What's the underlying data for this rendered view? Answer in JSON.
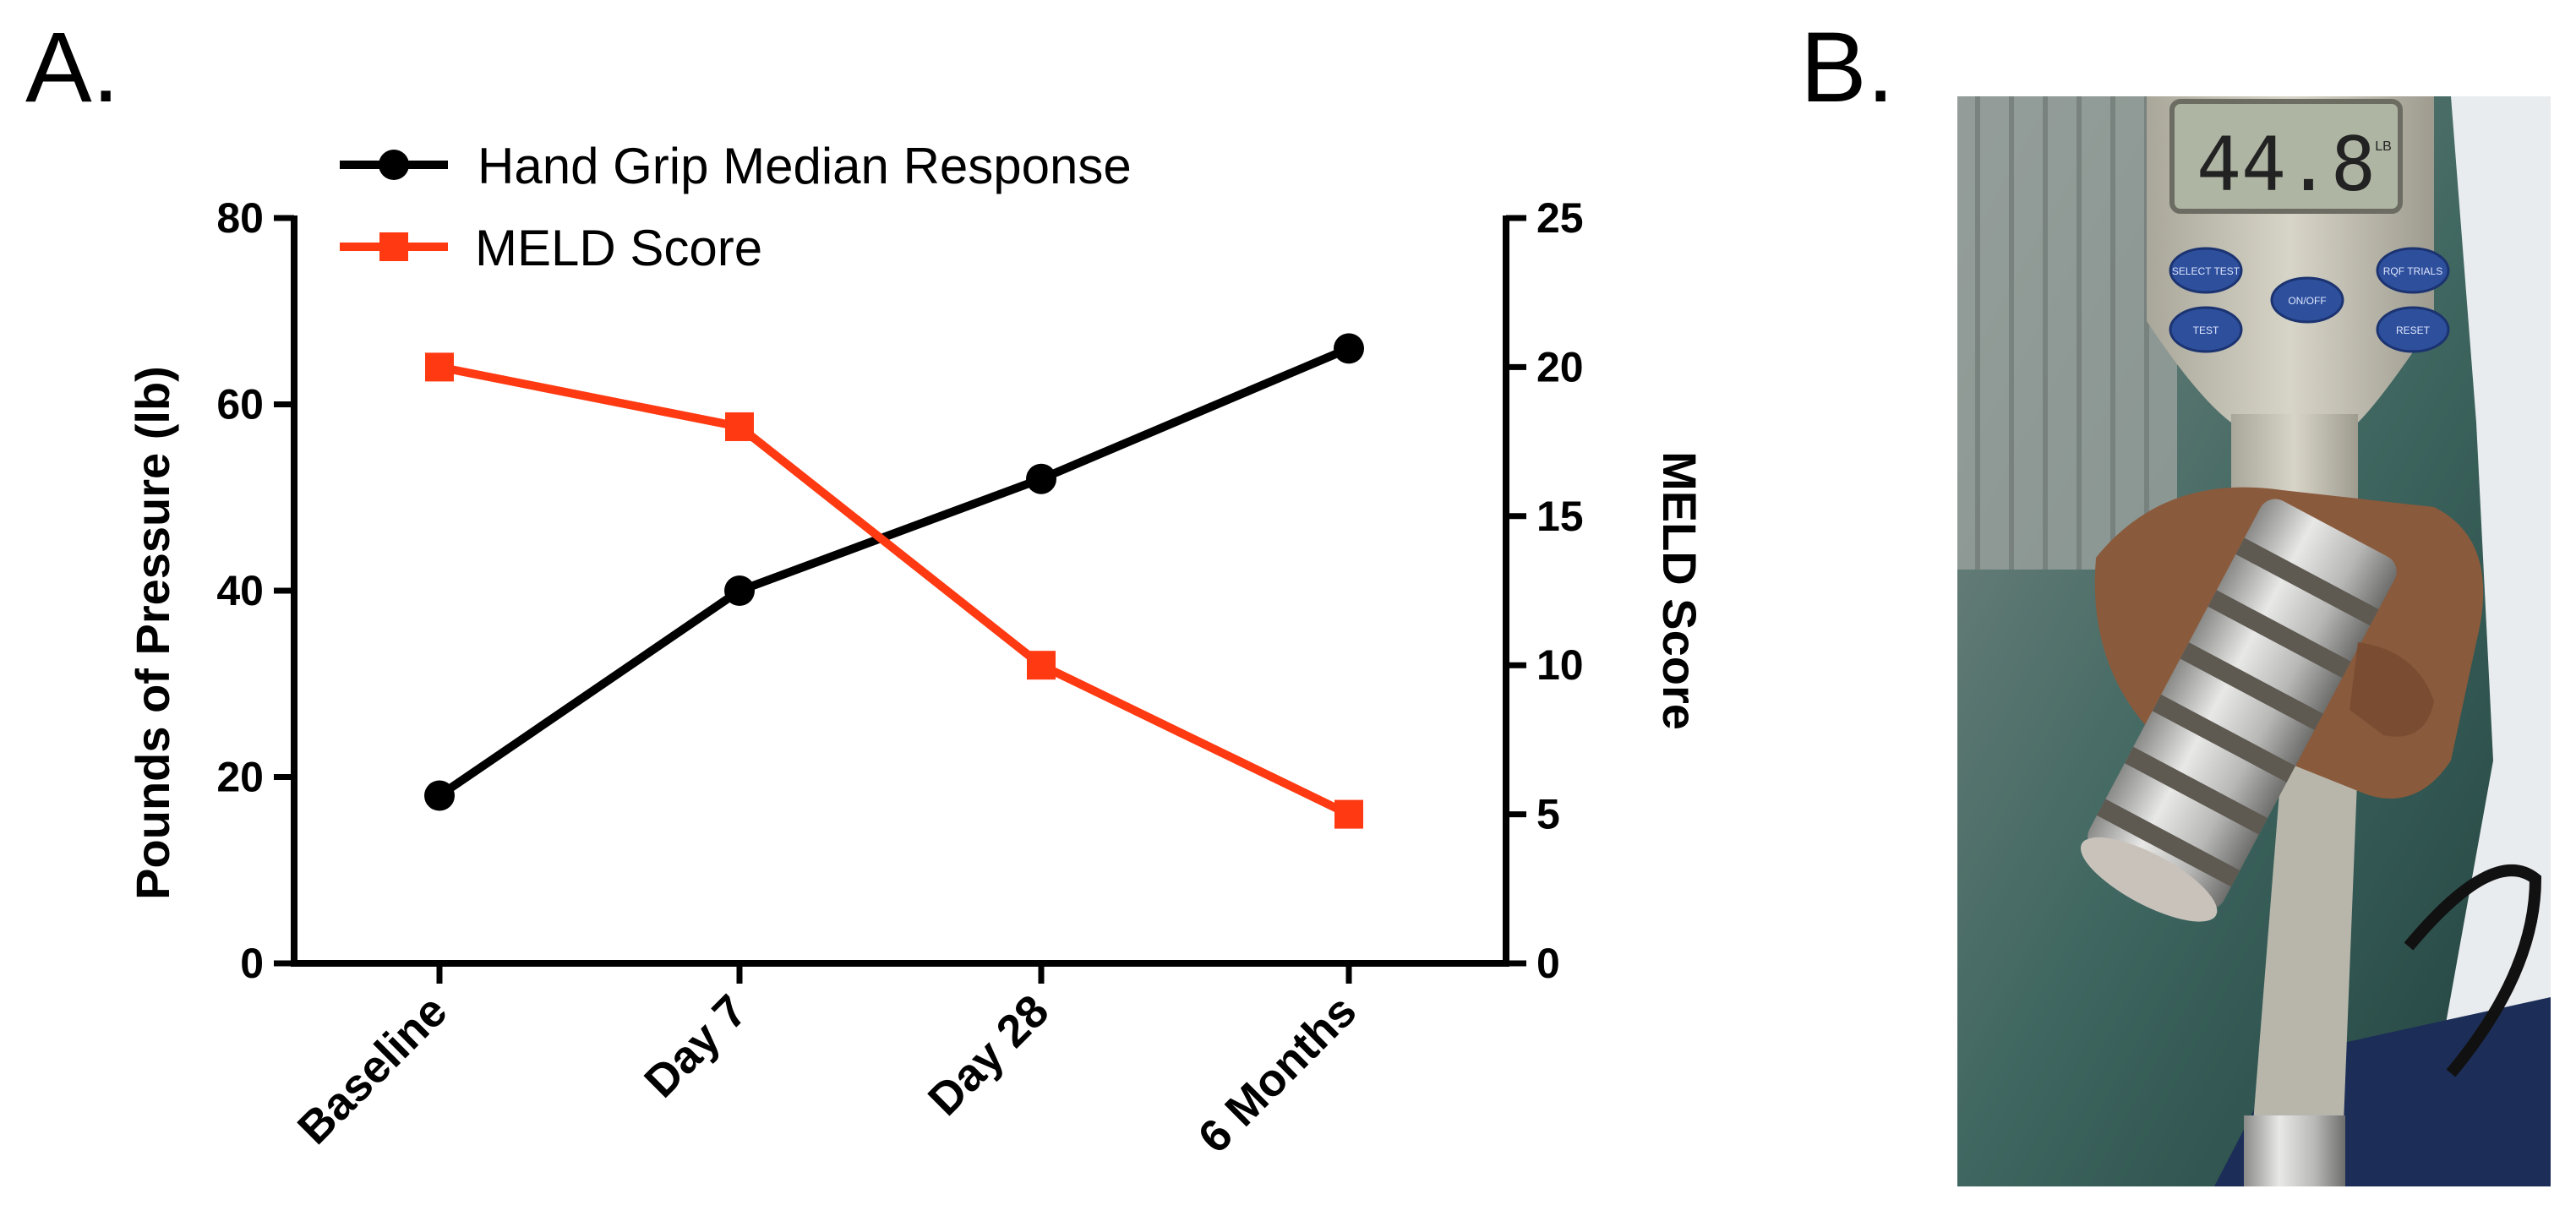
{
  "panels": {
    "a_label": "A.",
    "b_label": "B."
  },
  "chart_data": {
    "type": "line",
    "categories": [
      "Baseline",
      "Day 7",
      "Day 28",
      "6 Months"
    ],
    "series": [
      {
        "name": "Hand Grip Median Response",
        "axis": "left",
        "color": "#000000",
        "marker": "circle",
        "values": [
          18,
          40,
          52,
          66
        ]
      },
      {
        "name": "MELD Score",
        "axis": "right",
        "color": "#ff3a12",
        "marker": "square",
        "values": [
          20,
          18,
          10,
          5
        ]
      }
    ],
    "ylabel_left": "Pounds of Pressure (lb)",
    "ylabel_right": "MELD Score",
    "ylim_left": [
      0,
      80
    ],
    "yticks_left": [
      0,
      20,
      40,
      60,
      80
    ],
    "ylim_right": [
      0,
      25
    ],
    "yticks_right": [
      0,
      5,
      10,
      15,
      20,
      25
    ],
    "legend_position": "top-left",
    "grid": false
  },
  "photo": {
    "description_icon": "hand-dynamometer-photo",
    "display_reading": "44.8",
    "display_unit": "LB",
    "buttons": [
      "SELECT TEST",
      "ON/OFF",
      "RQF TRIALS",
      "TEST",
      "RESET"
    ]
  }
}
